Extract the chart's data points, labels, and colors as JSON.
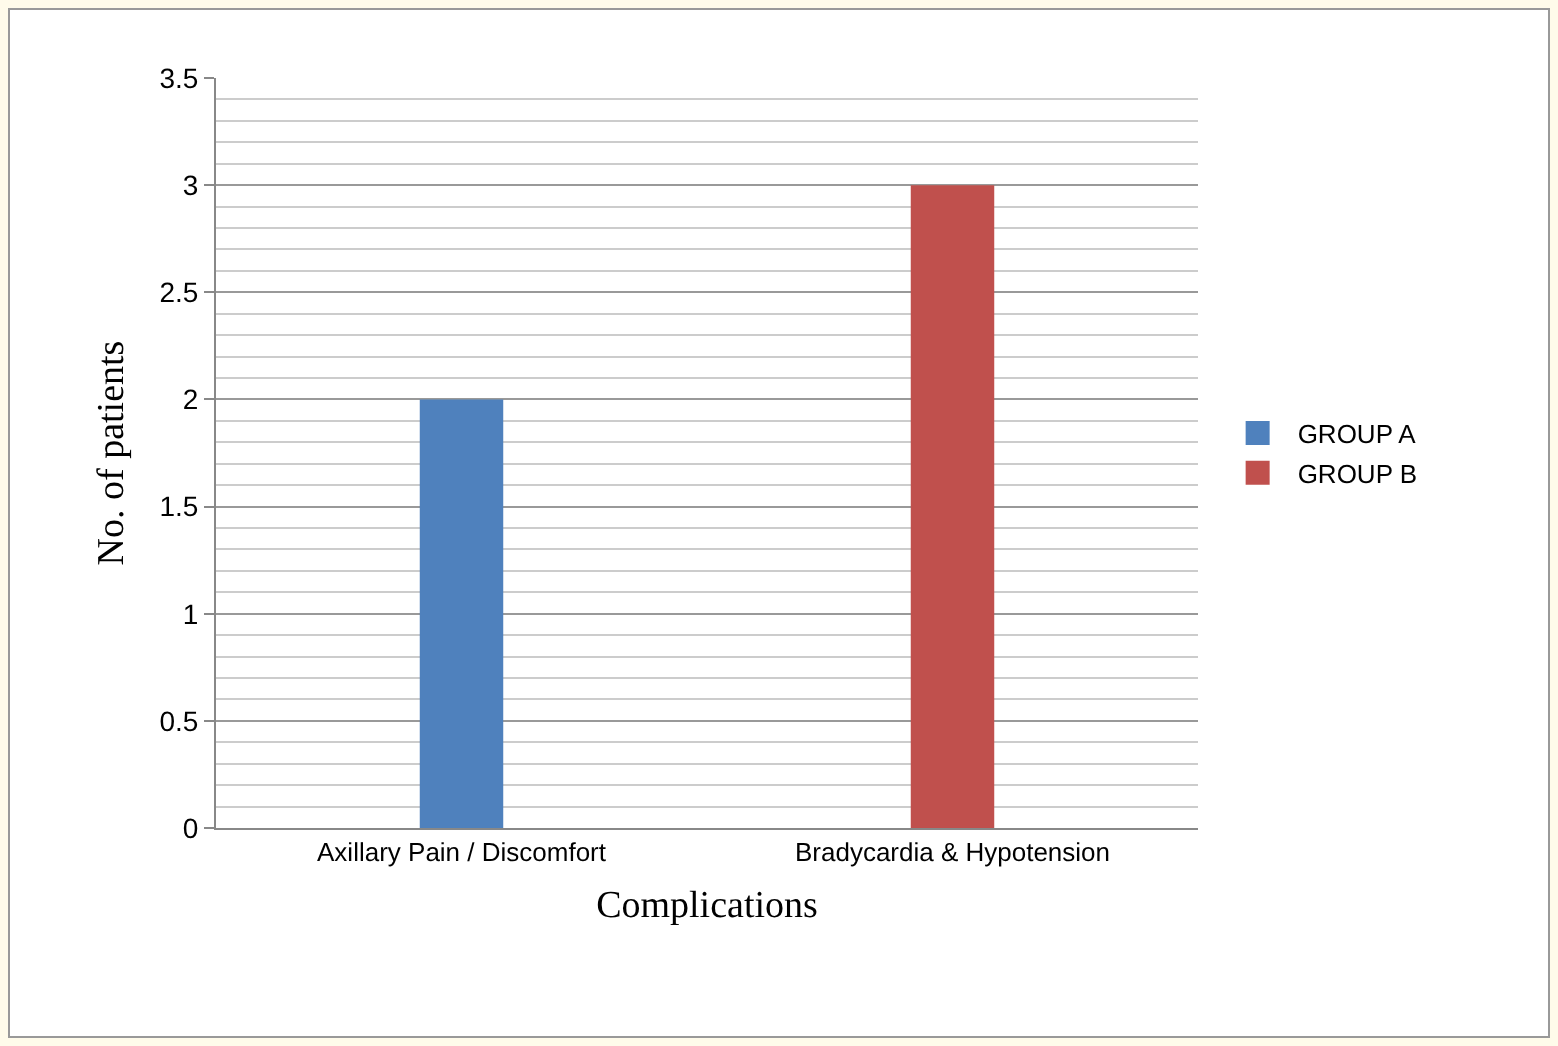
{
  "chart_data": {
    "type": "bar",
    "xlabel": "Complications",
    "ylabel": "No. of patients",
    "categories": [
      "Axillary Pain / Discomfort",
      "Bradycardia & Hypotension"
    ],
    "series": [
      {
        "name": "GROUP A",
        "color": "#4f81bd",
        "values": [
          2,
          null
        ]
      },
      {
        "name": "GROUP B",
        "color": "#c0504d",
        "values": [
          null,
          3
        ]
      }
    ],
    "ylim": [
      0,
      3.5
    ],
    "yticks": [
      0,
      0.5,
      1,
      1.5,
      2,
      2.5,
      3,
      3.5
    ],
    "grid": "y",
    "legend": "right"
  }
}
